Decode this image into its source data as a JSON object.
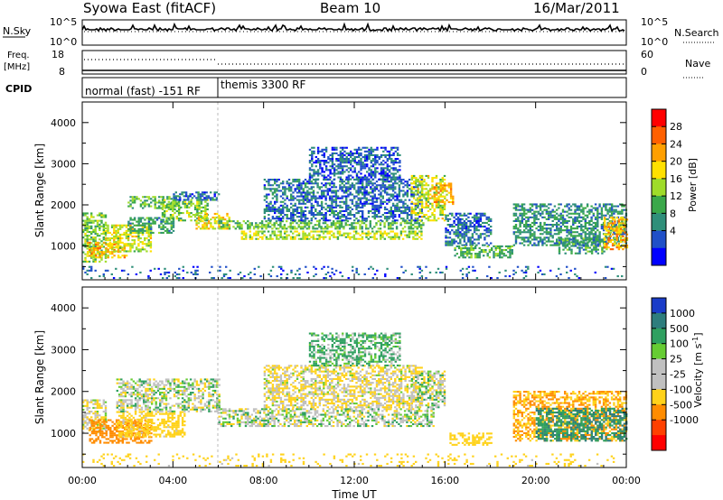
{
  "header": {
    "station": "Syowa East (fitACF)",
    "beam": "Beam 10",
    "date": "16/Mar/2011"
  },
  "panels": {
    "nsky": {
      "label": "N.Sky",
      "top_tick": "10^5",
      "bottom_tick": "10^0",
      "right_label": "N.Search",
      "right_top": "10^5",
      "right_bottom": "10^0"
    },
    "freq": {
      "label_1": "Freq.",
      "label_2": "[MHz]",
      "top_tick": "18",
      "bottom_tick": "8",
      "right_label": "Nave",
      "right_top": "60",
      "right_bottom": "0"
    },
    "cpid": {
      "label": "CPID",
      "seg1": "normal (fast) -151 RF",
      "seg2": "themis 3300 RF"
    }
  },
  "power": {
    "cbar_label": "Power [dB]",
    "cbar_ticks": [
      "28",
      "24",
      "20",
      "16",
      "12",
      "8",
      "4"
    ],
    "cbar_colors": [
      "#ff0000",
      "#ff6000",
      "#ff9f00",
      "#ffe000",
      "#9fdc2a",
      "#3aa84a",
      "#2f8f7a",
      "#2050c8",
      "#0000ff"
    ]
  },
  "velocity": {
    "cbar_label": "Velocity [m s",
    "cbar_sup": "-1",
    "cbar_ticks": [
      "1000",
      "500",
      "100",
      "25",
      "-25",
      "-100",
      "-500",
      "-1000"
    ],
    "cbar_colors": [
      "#1a3cc8",
      "#2e7d7d",
      "#2fa060",
      "#66cc33",
      "#c0c0c0",
      "#c0c0c0",
      "#ffd21a",
      "#ff8c00",
      "#ff4000",
      "#ff0000"
    ]
  },
  "chart_data": [
    {
      "type": "heatmap",
      "title": "Power",
      "ylabel": "Slant Range [km]",
      "xlabel": "Time UT",
      "xlim": [
        "00:00",
        "24:00"
      ],
      "ylim": [
        180,
        4500
      ],
      "x_ticks": [
        "00:00",
        "04:00",
        "08:00",
        "12:00",
        "16:00",
        "20:00",
        "00:00"
      ],
      "y_ticks": [
        1000,
        2000,
        3000,
        4000
      ],
      "blobs": [
        {
          "t0": 0.0,
          "t1": 1.0,
          "r0": 600,
          "r1": 1800,
          "v": 14
        },
        {
          "t0": 0.2,
          "t1": 2.0,
          "r0": 700,
          "r1": 1100,
          "v": 22
        },
        {
          "t0": 1.0,
          "t1": 3.0,
          "r0": 850,
          "r1": 1500,
          "v": 18
        },
        {
          "t0": 2.0,
          "t1": 4.0,
          "r0": 1300,
          "r1": 1700,
          "v": 10
        },
        {
          "t0": 2.0,
          "t1": 4.3,
          "r0": 1900,
          "r1": 2200,
          "v": 12
        },
        {
          "t0": 3.5,
          "t1": 5.5,
          "r0": 1600,
          "r1": 2100,
          "v": 14
        },
        {
          "t0": 4.0,
          "t1": 6.0,
          "r0": 2100,
          "r1": 2300,
          "v": 6
        },
        {
          "t0": 5.0,
          "t1": 6.5,
          "r0": 1400,
          "r1": 1800,
          "v": 20
        },
        {
          "t0": 6.0,
          "t1": 15.0,
          "r0": 1400,
          "r1": 1600,
          "v": 13
        },
        {
          "t0": 7.0,
          "t1": 15.0,
          "r0": 1150,
          "r1": 1350,
          "v": 17
        },
        {
          "t0": 8.0,
          "t1": 15.0,
          "r0": 1600,
          "r1": 2600,
          "v": 6
        },
        {
          "t0": 10.0,
          "t1": 14.0,
          "r0": 2600,
          "r1": 3400,
          "v": 5
        },
        {
          "t0": 14.5,
          "t1": 16.0,
          "r0": 1600,
          "r1": 2700,
          "v": 18
        },
        {
          "t0": 15.5,
          "t1": 16.4,
          "r0": 2000,
          "r1": 2500,
          "v": 22
        },
        {
          "t0": 16.0,
          "t1": 18.0,
          "r0": 1000,
          "r1": 1800,
          "v": 6
        },
        {
          "t0": 16.4,
          "t1": 19.0,
          "r0": 700,
          "r1": 1000,
          "v": 12
        },
        {
          "t0": 19.0,
          "t1": 24.0,
          "r0": 1000,
          "r1": 2000,
          "v": 9
        },
        {
          "t0": 21.0,
          "t1": 23.0,
          "r0": 800,
          "r1": 1200,
          "v": 10
        },
        {
          "t0": 23.0,
          "t1": 24.0,
          "r0": 900,
          "r1": 1700,
          "v": 22
        },
        {
          "t0": 0.0,
          "t1": 24.0,
          "r0": 200,
          "r1": 500,
          "v": 5
        }
      ]
    },
    {
      "type": "heatmap",
      "title": "Velocity",
      "ylabel": "Slant Range [km]",
      "xlabel": "Time UT",
      "xlim": [
        "00:00",
        "24:00"
      ],
      "ylim": [
        180,
        4500
      ],
      "x_ticks": [
        "00:00",
        "04:00",
        "08:00",
        "12:00",
        "16:00",
        "20:00",
        "00:00"
      ],
      "y_ticks": [
        1000,
        2000,
        3000,
        4000
      ],
      "blobs": [
        {
          "t0": 0.0,
          "t1": 1.0,
          "r0": 1000,
          "r1": 1800,
          "v": -50
        },
        {
          "t0": 0.3,
          "t1": 3.0,
          "r0": 750,
          "r1": 1300,
          "v": -600
        },
        {
          "t0": 1.5,
          "t1": 4.5,
          "r0": 900,
          "r1": 1500,
          "v": -150
        },
        {
          "t0": 1.5,
          "t1": 6.0,
          "r0": 1500,
          "r1": 2300,
          "v": 0
        },
        {
          "t0": 6.0,
          "t1": 15.5,
          "r0": 1150,
          "r1": 1600,
          "v": 0
        },
        {
          "t0": 8.0,
          "t1": 15.0,
          "r0": 1600,
          "r1": 2600,
          "v": -60
        },
        {
          "t0": 10.0,
          "t1": 14.0,
          "r0": 2600,
          "r1": 3400,
          "v": 80
        },
        {
          "t0": 14.5,
          "t1": 16.0,
          "r0": 1600,
          "r1": 2500,
          "v": 0
        },
        {
          "t0": 16.2,
          "t1": 18.0,
          "r0": 700,
          "r1": 1000,
          "v": -200
        },
        {
          "t0": 19.0,
          "t1": 24.0,
          "r0": 800,
          "r1": 2000,
          "v": -300
        },
        {
          "t0": 20.0,
          "t1": 24.0,
          "r0": 800,
          "r1": 1600,
          "v": 300
        },
        {
          "t0": 0.0,
          "t1": 24.0,
          "r0": 200,
          "r1": 500,
          "v": -150
        }
      ]
    }
  ]
}
